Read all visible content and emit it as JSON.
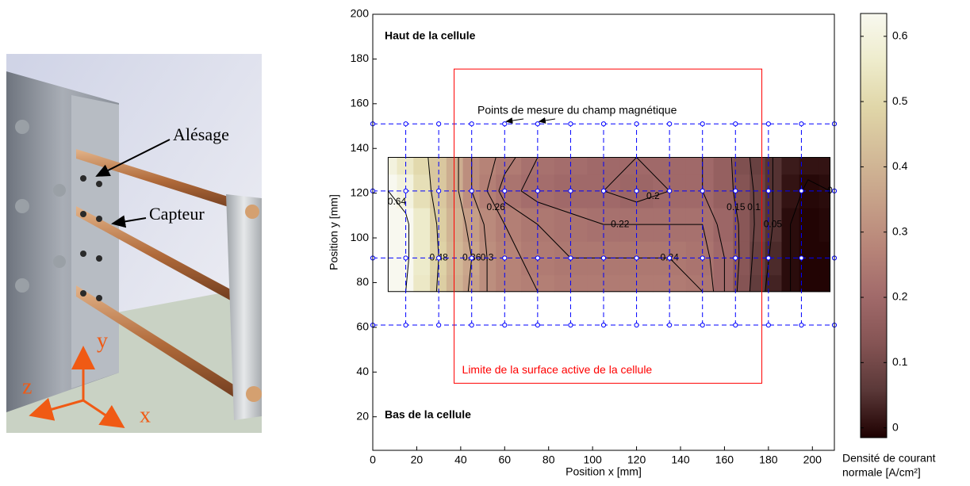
{
  "photo": {
    "bore": "Alésage",
    "sensor": "Capteur",
    "axis_x": "x",
    "axis_y": "y",
    "axis_z": "z"
  },
  "chart_data": {
    "type": "contour",
    "xlabel": "Position x [mm]",
    "ylabel": "Position y [mm]",
    "xlim": [
      0,
      210
    ],
    "ylim": [
      5,
      200
    ],
    "xticks": [
      0,
      20,
      40,
      60,
      80,
      100,
      120,
      140,
      160,
      180,
      200
    ],
    "yticks": [
      20,
      40,
      60,
      80,
      100,
      120,
      140,
      160,
      180,
      200
    ],
    "x": [
      7,
      15,
      22,
      30,
      37,
      45,
      52,
      60,
      75,
      90,
      105,
      120,
      135,
      150,
      160,
      168,
      175,
      182,
      190,
      198,
      208
    ],
    "y": [
      76,
      91,
      106,
      121,
      136
    ],
    "z": [
      [
        0.66,
        0.64,
        0.55,
        0.47,
        0.4,
        0.35,
        0.3,
        0.27,
        0.26,
        0.25,
        0.25,
        0.25,
        0.25,
        0.24,
        0.2,
        0.13,
        0.07,
        0.03,
        0.0,
        -0.01,
        -0.01
      ],
      [
        0.68,
        0.66,
        0.56,
        0.48,
        0.41,
        0.36,
        0.3,
        0.27,
        0.25,
        0.24,
        0.24,
        0.24,
        0.24,
        0.23,
        0.2,
        0.14,
        0.08,
        0.04,
        0.0,
        -0.01,
        -0.01
      ],
      [
        0.68,
        0.66,
        0.56,
        0.47,
        0.4,
        0.34,
        0.29,
        0.26,
        0.24,
        0.23,
        0.22,
        0.22,
        0.22,
        0.22,
        0.19,
        0.14,
        0.09,
        0.05,
        0.0,
        -0.01,
        -0.005
      ],
      [
        0.64,
        0.6,
        0.52,
        0.45,
        0.38,
        0.3,
        0.26,
        0.23,
        0.21,
        0.2,
        0.2,
        0.19,
        0.2,
        0.2,
        0.17,
        0.13,
        0.09,
        0.05,
        0.01,
        -0.005,
        0.0
      ],
      [
        0.6,
        0.55,
        0.5,
        0.45,
        0.38,
        0.3,
        0.27,
        0.25,
        0.22,
        0.21,
        0.2,
        0.2,
        0.2,
        0.2,
        0.17,
        0.12,
        0.08,
        0.05,
        0.02,
        0.01,
        0.01
      ]
    ],
    "contour_levels": [
      0.64,
      0.48,
      0.36,
      0.3,
      0.26,
      0.24,
      0.22,
      0.2,
      0.15,
      0.1,
      0.05,
      0
    ],
    "colormap": [
      "#1e0000",
      "#5a3838",
      "#855454",
      "#a16a6a",
      "#b78478",
      "#c6a088",
      "#d3bb98",
      "#e0d6a8",
      "#eeeccc",
      "#f8f8ef"
    ],
    "clim": [
      -0.015,
      0.635
    ],
    "cticks": [
      0,
      0.1,
      0.2,
      0.3,
      0.4,
      0.5,
      0.6
    ],
    "colorbar_label": [
      "Densité de courant",
      "normale [A/cm²]"
    ],
    "measure_x": [
      0,
      15,
      30,
      45,
      60,
      75,
      90,
      105,
      120,
      135,
      150,
      165,
      180,
      195,
      210
    ],
    "measure_y": [
      61,
      91,
      121,
      151
    ],
    "measure_color": "#0000ff",
    "active_area": {
      "x": [
        37,
        177
      ],
      "y": [
        35,
        175.5
      ],
      "color": "#ff0000",
      "label": "Limite de la surface active de la cellule"
    },
    "annotations": {
      "top": "Haut de la cellule",
      "bottom": "Bas de la cellule",
      "points": "Points de mesure du champ magnétique"
    }
  }
}
